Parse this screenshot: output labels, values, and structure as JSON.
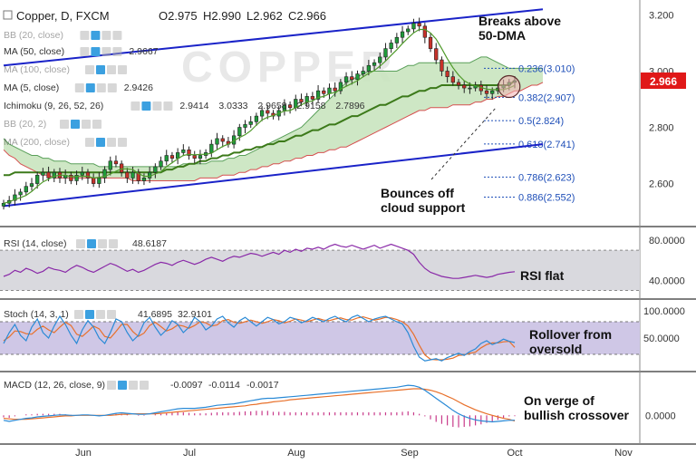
{
  "header": {
    "symbol": "Copper, D, FXCM",
    "ohlc": {
      "open": "O2.975",
      "high": "H2.990",
      "low": "L2.962",
      "close": "C2.966"
    }
  },
  "colors": {
    "bull": "#1f9a3a",
    "bear": "#c8322a",
    "trendline": "#1a23c8",
    "ma50": "#3c7a1a",
    "ma5": "#4f9a2a",
    "cloud": "#c9e4bf",
    "kijun": "#d65050",
    "fib": "#1f4fb8",
    "rsi": "#8a2aa8",
    "stoch_k": "#2a8ad6",
    "stoch_d": "#e8702a",
    "macd": "#2a8ad6",
    "signal": "#e8702a",
    "hist": "#c83a8a",
    "price_tag": "#e01818",
    "band": "#cfc7e6"
  },
  "indicators": {
    "main": [
      {
        "id": "bb20",
        "label": "BB (20, close)",
        "values": []
      },
      {
        "id": "ma50",
        "label": "MA (50, close)",
        "values": [
          "2.9667"
        ]
      },
      {
        "id": "ma100",
        "label": "MA (100, close)",
        "values": []
      },
      {
        "id": "ma5",
        "label": "MA (5, close)",
        "values": [
          "2.9426"
        ]
      },
      {
        "id": "ichi",
        "label": "Ichimoku (9, 26, 52, 26)",
        "values": [
          "2.9414",
          "3.0333",
          "2.9658",
          "2.9158",
          "2.7896"
        ]
      },
      {
        "id": "bb20b",
        "label": "BB (20, 2)",
        "values": []
      },
      {
        "id": "ma200",
        "label": "MA (200, close)",
        "values": []
      }
    ],
    "rsi": {
      "label": "RSI (14, close)",
      "value": "48.6187"
    },
    "stoch": {
      "label": "Stoch (14, 3, 1)",
      "values": [
        "41.6895",
        "32.9101"
      ]
    },
    "macd": {
      "label": "MACD (12, 26, close, 9)",
      "values": [
        "-0.0097",
        "-0.0114",
        "-0.0017"
      ]
    }
  },
  "annotations": {
    "breaks": "Breaks above\n50-DMA",
    "bounces": "Bounces off\ncloud support",
    "rsi": "RSI flat",
    "stoch": "Rollover from\noversold",
    "macd": "On verge of\nbullish crossover"
  },
  "price_tag": "2.966",
  "chart_data": [
    {
      "type": "candlestick",
      "title": "Copper, D, FXCM",
      "x_ticks": [
        "Jun",
        "Jul",
        "Aug",
        "Sep",
        "Oct",
        "Nov"
      ],
      "y_ticks": [
        "3.200",
        "3.000",
        "2.800",
        "2.600"
      ],
      "ylim": [
        2.46,
        3.24
      ],
      "last_price": 2.966,
      "fib_levels": [
        {
          "label": "0.236(3.010)",
          "value": 3.01
        },
        {
          "label": "0.382(2.907)",
          "value": 2.907
        },
        {
          "label": "0.5(2.824)",
          "value": 2.824
        },
        {
          "label": "0.618(2.741)",
          "value": 2.741
        },
        {
          "label": "0.786(2.623)",
          "value": 2.623
        },
        {
          "label": "0.886(2.552)",
          "value": 2.552
        }
      ],
      "trendlines": [
        {
          "name": "upper",
          "from": [
            0,
            3.02
          ],
          "to": [
            96,
            3.22
          ]
        },
        {
          "name": "lower",
          "from": [
            0,
            2.52
          ],
          "to": [
            96,
            2.74
          ]
        }
      ],
      "close": [
        2.53,
        2.54,
        2.56,
        2.57,
        2.59,
        2.6,
        2.63,
        2.64,
        2.62,
        2.64,
        2.62,
        2.63,
        2.61,
        2.63,
        2.64,
        2.62,
        2.6,
        2.62,
        2.65,
        2.68,
        2.67,
        2.64,
        2.62,
        2.64,
        2.61,
        2.62,
        2.64,
        2.66,
        2.68,
        2.7,
        2.69,
        2.71,
        2.72,
        2.7,
        2.69,
        2.7,
        2.71,
        2.74,
        2.76,
        2.75,
        2.74,
        2.77,
        2.8,
        2.81,
        2.82,
        2.84,
        2.86,
        2.85,
        2.84,
        2.86,
        2.88,
        2.87,
        2.9,
        2.89,
        2.91,
        2.9,
        2.93,
        2.92,
        2.94,
        2.93,
        2.96,
        2.98,
        2.97,
        2.99,
        3.0,
        3.02,
        3.03,
        3.05,
        3.08,
        3.1,
        3.12,
        3.14,
        3.15,
        3.17,
        3.16,
        3.12,
        3.08,
        3.04,
        3.0,
        2.98,
        2.96,
        2.95,
        2.94,
        2.94,
        2.95,
        2.93,
        2.92,
        2.93,
        2.94,
        2.95,
        2.96,
        2.966
      ],
      "ma50": [
        2.63,
        2.63,
        2.64,
        2.64,
        2.64,
        2.64,
        2.64,
        2.64,
        2.64,
        2.64,
        2.64,
        2.64,
        2.64,
        2.64,
        2.64,
        2.64,
        2.64,
        2.64,
        2.64,
        2.64,
        2.64,
        2.64,
        2.64,
        2.64,
        2.64,
        2.64,
        2.64,
        2.64,
        2.64,
        2.65,
        2.65,
        2.66,
        2.66,
        2.67,
        2.67,
        2.68,
        2.68,
        2.69,
        2.69,
        2.7,
        2.7,
        2.71,
        2.71,
        2.72,
        2.72,
        2.73,
        2.73,
        2.74,
        2.74,
        2.75,
        2.75,
        2.76,
        2.77,
        2.77,
        2.78,
        2.79,
        2.79,
        2.8,
        2.81,
        2.81,
        2.82,
        2.83,
        2.84,
        2.84,
        2.85,
        2.86,
        2.87,
        2.88,
        2.88,
        2.89,
        2.9,
        2.91,
        2.91,
        2.92,
        2.93,
        2.93,
        2.94,
        2.94,
        2.95,
        2.95,
        2.95,
        2.95,
        2.95,
        2.95,
        2.95,
        2.95,
        2.95,
        2.95,
        2.95,
        2.95,
        2.95,
        2.9667
      ],
      "cloud_top": [
        2.76,
        2.74,
        2.73,
        2.72,
        2.71,
        2.7,
        2.7,
        2.69,
        2.69,
        2.68,
        2.68,
        2.68,
        2.67,
        2.67,
        2.67,
        2.67,
        2.67,
        2.66,
        2.66,
        2.66,
        2.66,
        2.66,
        2.66,
        2.66,
        2.66,
        2.66,
        2.66,
        2.66,
        2.66,
        2.66,
        2.66,
        2.66,
        2.67,
        2.67,
        2.67,
        2.67,
        2.67,
        2.68,
        2.68,
        2.68,
        2.69,
        2.69,
        2.7,
        2.7,
        2.71,
        2.72,
        2.73,
        2.74,
        2.75,
        2.76,
        2.77,
        2.78,
        2.79,
        2.8,
        2.82,
        2.84,
        2.86,
        2.88,
        2.9,
        2.92,
        2.94,
        2.96,
        2.97,
        2.98,
        2.99,
        3.0,
        3.0,
        3.0,
        3.0,
        3.0,
        3.0,
        3.01,
        3.02,
        3.02,
        3.03,
        3.03,
        3.03,
        3.03,
        3.03,
        3.03,
        3.03,
        3.03,
        3.03,
        3.03,
        3.04,
        3.05,
        3.05,
        3.04,
        3.03,
        3.02,
        3.01,
        3.01,
        3.01,
        3.01,
        3.01,
        3.01,
        3.01
      ],
      "cloud_bottom": [
        2.72,
        2.7,
        2.69,
        2.67,
        2.66,
        2.65,
        2.64,
        2.63,
        2.63,
        2.62,
        2.62,
        2.62,
        2.62,
        2.62,
        2.62,
        2.62,
        2.62,
        2.62,
        2.62,
        2.62,
        2.62,
        2.62,
        2.62,
        2.61,
        2.61,
        2.61,
        2.61,
        2.61,
        2.61,
        2.61,
        2.61,
        2.61,
        2.61,
        2.61,
        2.61,
        2.62,
        2.62,
        2.62,
        2.62,
        2.63,
        2.63,
        2.63,
        2.64,
        2.64,
        2.65,
        2.65,
        2.66,
        2.66,
        2.67,
        2.67,
        2.68,
        2.68,
        2.69,
        2.69,
        2.7,
        2.7,
        2.71,
        2.71,
        2.72,
        2.72,
        2.73,
        2.73,
        2.74,
        2.75,
        2.76,
        2.77,
        2.78,
        2.79,
        2.8,
        2.81,
        2.82,
        2.83,
        2.84,
        2.85,
        2.86,
        2.86,
        2.87,
        2.87,
        2.87,
        2.87,
        2.88,
        2.88,
        2.88,
        2.88,
        2.89,
        2.89,
        2.9,
        2.9,
        2.91,
        2.91,
        2.92,
        2.93,
        2.93,
        2.94,
        2.95,
        2.95,
        2.96
      ]
    },
    {
      "type": "line",
      "title": "RSI (14, close)",
      "y_ticks": [
        "80.0000",
        "40.0000"
      ],
      "ylim": [
        25,
        90
      ],
      "band": [
        30,
        70
      ],
      "series": [
        {
          "name": "RSI",
          "values": [
            44,
            46,
            50,
            48,
            52,
            50,
            47,
            49,
            53,
            51,
            50,
            48,
            52,
            55,
            53,
            50,
            48,
            51,
            54,
            57,
            55,
            52,
            49,
            51,
            48,
            50,
            53,
            56,
            58,
            57,
            55,
            58,
            60,
            58,
            56,
            58,
            61,
            63,
            61,
            59,
            62,
            64,
            63,
            65,
            67,
            66,
            64,
            66,
            68,
            66,
            70,
            68,
            71,
            69,
            72,
            71,
            73,
            71,
            74,
            76,
            74,
            73,
            75,
            73,
            71,
            73,
            75,
            72,
            74,
            76,
            74,
            72,
            70,
            66,
            58,
            52,
            48,
            46,
            44,
            43,
            42,
            42,
            43,
            44,
            45,
            44,
            43,
            44,
            46,
            47,
            48,
            48.6187
          ]
        }
      ]
    },
    {
      "type": "line",
      "title": "Stoch (14, 3, 1)",
      "y_ticks": [
        "100.0000",
        "50.0000"
      ],
      "ylim": [
        -5,
        115
      ],
      "band": [
        20,
        80
      ],
      "series": [
        {
          "name": "%K",
          "values": [
            40,
            60,
            75,
            55,
            45,
            70,
            85,
            60,
            50,
            72,
            90,
            75,
            55,
            40,
            65,
            82,
            70,
            50,
            40,
            60,
            85,
            80,
            60,
            45,
            55,
            78,
            88,
            70,
            55,
            65,
            82,
            75,
            60,
            70,
            88,
            80,
            65,
            72,
            85,
            90,
            78,
            70,
            82,
            88,
            80,
            72,
            80,
            88,
            84,
            76,
            80,
            88,
            85,
            78,
            82,
            88,
            84,
            80,
            86,
            90,
            84,
            80,
            88,
            92,
            86,
            80,
            85,
            88,
            90,
            85,
            80,
            76,
            60,
            35,
            15,
            8,
            10,
            12,
            8,
            14,
            18,
            22,
            18,
            25,
            30,
            40,
            45,
            38,
            42,
            48,
            44,
            41.6895
          ]
        },
        {
          "name": "%D",
          "values": [
            45,
            52,
            63,
            62,
            58,
            57,
            66,
            72,
            65,
            60,
            70,
            79,
            73,
            57,
            53,
            62,
            72,
            67,
            53,
            50,
            62,
            75,
            75,
            62,
            53,
            59,
            73,
            79,
            71,
            63,
            67,
            74,
            72,
            68,
            73,
            80,
            78,
            72,
            74,
            82,
            84,
            79,
            77,
            80,
            83,
            80,
            77,
            80,
            84,
            82,
            78,
            81,
            85,
            83,
            80,
            83,
            86,
            83,
            82,
            85,
            87,
            84,
            83,
            87,
            89,
            86,
            83,
            85,
            88,
            87,
            84,
            80,
            72,
            57,
            37,
            19,
            11,
            10,
            10,
            11,
            13,
            18,
            19,
            22,
            24,
            32,
            38,
            41,
            41,
            43,
            44,
            32.9101
          ]
        }
      ]
    },
    {
      "type": "line",
      "title": "MACD (12, 26, close, 9)",
      "y_ticks": [
        "0.0000"
      ],
      "ylim": [
        -0.05,
        0.08
      ],
      "series": [
        {
          "name": "MACD",
          "values": [
            -0.01,
            -0.012,
            -0.01,
            -0.008,
            -0.006,
            -0.005,
            -0.003,
            -0.002,
            -0.001,
            0.0,
            0.001,
            0.001,
            0.0,
            0.0,
            0.001,
            0.001,
            0.0,
            -0.001,
            0.0,
            0.002,
            0.004,
            0.005,
            0.004,
            0.003,
            0.002,
            0.002,
            0.003,
            0.005,
            0.007,
            0.009,
            0.011,
            0.013,
            0.014,
            0.014,
            0.014,
            0.015,
            0.016,
            0.018,
            0.02,
            0.021,
            0.022,
            0.023,
            0.025,
            0.027,
            0.029,
            0.031,
            0.033,
            0.034,
            0.034,
            0.035,
            0.036,
            0.037,
            0.038,
            0.039,
            0.04,
            0.041,
            0.042,
            0.043,
            0.044,
            0.045,
            0.046,
            0.047,
            0.048,
            0.049,
            0.05,
            0.051,
            0.052,
            0.053,
            0.054,
            0.055,
            0.056,
            0.058,
            0.06,
            0.059,
            0.056,
            0.05,
            0.042,
            0.034,
            0.026,
            0.018,
            0.01,
            0.003,
            -0.002,
            -0.006,
            -0.009,
            -0.011,
            -0.012,
            -0.013,
            -0.012,
            -0.011,
            -0.01,
            -0.0097
          ]
        },
        {
          "name": "Signal",
          "values": [
            -0.006,
            -0.007,
            -0.008,
            -0.008,
            -0.008,
            -0.007,
            -0.006,
            -0.005,
            -0.004,
            -0.003,
            -0.002,
            -0.001,
            -0.001,
            0.0,
            0.0,
            0.0,
            0.0,
            0.0,
            0.0,
            0.0,
            0.001,
            0.002,
            0.002,
            0.003,
            0.003,
            0.003,
            0.003,
            0.003,
            0.004,
            0.005,
            0.006,
            0.007,
            0.008,
            0.009,
            0.01,
            0.011,
            0.012,
            0.013,
            0.014,
            0.015,
            0.016,
            0.017,
            0.018,
            0.019,
            0.021,
            0.022,
            0.024,
            0.025,
            0.027,
            0.028,
            0.029,
            0.031,
            0.032,
            0.033,
            0.034,
            0.035,
            0.036,
            0.037,
            0.038,
            0.039,
            0.04,
            0.041,
            0.042,
            0.043,
            0.044,
            0.045,
            0.046,
            0.047,
            0.048,
            0.049,
            0.05,
            0.051,
            0.052,
            0.053,
            0.053,
            0.052,
            0.05,
            0.047,
            0.043,
            0.038,
            0.033,
            0.027,
            0.021,
            0.016,
            0.011,
            0.007,
            0.003,
            0.0,
            -0.003,
            -0.006,
            -0.008,
            -0.0114
          ]
        }
      ],
      "histogram": [
        -0.004,
        -0.005,
        -0.002,
        0.0,
        0.002,
        0.002,
        0.003,
        0.003,
        0.003,
        0.003,
        0.003,
        0.002,
        0.001,
        0.0,
        0.001,
        0.001,
        0.0,
        -0.001,
        0.0,
        0.002,
        0.003,
        0.003,
        0.002,
        0.0,
        -0.001,
        -0.001,
        0.0,
        0.002,
        0.003,
        0.004,
        0.005,
        0.006,
        0.006,
        0.005,
        0.004,
        0.004,
        0.004,
        0.005,
        0.006,
        0.006,
        0.006,
        0.006,
        0.007,
        0.008,
        0.008,
        0.009,
        0.009,
        0.009,
        0.007,
        0.007,
        0.007,
        0.006,
        0.006,
        0.006,
        0.006,
        0.006,
        0.006,
        0.006,
        0.006,
        0.006,
        0.006,
        0.006,
        0.006,
        0.006,
        0.006,
        0.006,
        0.006,
        0.006,
        0.006,
        0.006,
        0.006,
        0.007,
        0.008,
        0.006,
        0.003,
        -0.002,
        -0.008,
        -0.013,
        -0.017,
        -0.02,
        -0.023,
        -0.024,
        -0.023,
        -0.022,
        -0.02,
        -0.018,
        -0.015,
        -0.013,
        -0.009,
        -0.005,
        -0.002,
        -0.0017
      ]
    }
  ]
}
